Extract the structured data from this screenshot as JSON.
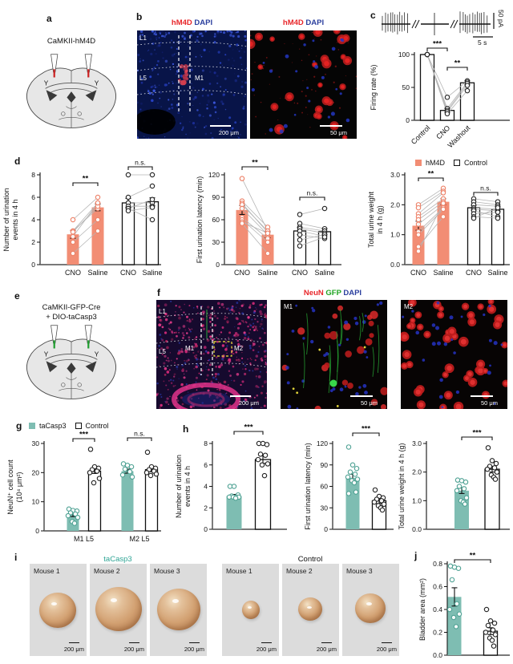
{
  "colors": {
    "salmon": "#F28D74",
    "teal": "#7EBDB2",
    "red_label": "#E8262A",
    "green_label": "#1FA321",
    "blue_label": "#2B3F9E"
  },
  "panel_a": {
    "label": "a",
    "title": "CaMKII-hM4D",
    "site_labels": [
      "Y",
      "Y"
    ]
  },
  "panel_b": {
    "label": "b",
    "left": {
      "title": [
        "hM4D",
        " DAPI"
      ],
      "labels": [
        "L1",
        "L5",
        "M1"
      ],
      "scale": "200 μm"
    },
    "right": {
      "title": [
        "hM4D",
        " DAPI"
      ],
      "scale": "50 μm"
    }
  },
  "panel_c": {
    "label": "c",
    "scale_v": "50 pA",
    "scale_h": "5 s",
    "chart_data": {
      "type": "bar",
      "ylabel_lines": [
        "Firing rate (%)"
      ],
      "ylim": [
        0,
        100
      ],
      "ytick_vals": [
        0,
        50,
        100
      ],
      "ytick_labels": [
        "0",
        "50",
        "100"
      ],
      "bars": [
        {
          "x_label": "Control",
          "value": 100,
          "err": 0,
          "color": "white"
        },
        {
          "x_label": "CNO",
          "value": 15,
          "err": 3,
          "color": "white"
        },
        {
          "x_label": "Washout",
          "value": 57,
          "err": 3,
          "color": "white"
        }
      ],
      "paired": [
        {
          "bars": [
            0,
            1,
            2
          ],
          "lines": [
            [
              100,
              35,
              60
            ],
            [
              100,
              18,
              58
            ],
            [
              100,
              15,
              56
            ],
            [
              100,
              13,
              53
            ],
            [
              100,
              10,
              45
            ]
          ]
        }
      ],
      "sig": [
        {
          "from": 0,
          "to": 1,
          "label": "***"
        },
        {
          "from": 1,
          "to": 2,
          "label": "**"
        }
      ]
    }
  },
  "panel_d": {
    "label": "d",
    "legend": [
      {
        "label": "hM4D"
      },
      {
        "label": "Control"
      }
    ],
    "charts": [
      {
        "type": "bar",
        "ylabel_lines": [
          "Number of urination",
          "events in 4 h"
        ],
        "ylim": [
          0,
          8
        ],
        "ytick_vals": [
          0,
          2,
          4,
          6,
          8
        ],
        "ytick_labels": [
          "0",
          "2",
          "4",
          "6",
          "8"
        ],
        "bars": [
          {
            "x_label": "CNO",
            "value": 2.7,
            "err": 0.35,
            "color": "salmon"
          },
          {
            "x_label": "Saline",
            "value": 5.1,
            "err": 0.3,
            "color": "salmon"
          },
          {
            "x_label": "CNO",
            "value": 5.5,
            "err": 0.4,
            "color": "white"
          },
          {
            "x_label": "Saline",
            "value": 5.6,
            "err": 0.35,
            "color": "white"
          }
        ],
        "paired": [
          {
            "bars": [
              0,
              1
            ],
            "lines": [
              [
                4,
                6
              ],
              [
                3,
                5.5
              ],
              [
                3,
                5
              ],
              [
                2.9,
                5.2
              ],
              [
                2.5,
                5.5
              ],
              [
                2,
                4
              ],
              [
                1,
                3
              ]
            ]
          },
          {
            "bars": [
              2,
              3
            ],
            "lines": [
              [
                8,
                8
              ],
              [
                6,
                7
              ],
              [
                5.5,
                5.5
              ],
              [
                5.2,
                5.2
              ],
              [
                5,
                5.8
              ],
              [
                5,
                4
              ],
              [
                4.8,
                5.1
              ]
            ]
          }
        ],
        "sig": [
          {
            "from": 0,
            "to": 1,
            "label": "**"
          },
          {
            "from": 2,
            "to": 3,
            "label": "n.s."
          }
        ]
      },
      {
        "type": "bar",
        "ylabel_lines": [
          "First urination latency (min)"
        ],
        "ylim": [
          0,
          120
        ],
        "ytick_vals": [
          0,
          30,
          60,
          90,
          120
        ],
        "ytick_labels": [
          "0",
          "30",
          "60",
          "90",
          "120"
        ],
        "bars": [
          {
            "x_label": "CNO",
            "value": 73,
            "err": 6,
            "color": "salmon"
          },
          {
            "x_label": "Saline",
            "value": 40,
            "err": 4,
            "color": "salmon"
          },
          {
            "x_label": "CNO",
            "value": 45,
            "err": 5,
            "color": "white"
          },
          {
            "x_label": "Saline",
            "value": 44,
            "err": 4,
            "color": "white"
          }
        ],
        "paired": [
          {
            "bars": [
              0,
              1
            ],
            "lines": [
              [
                115,
                45
              ],
              [
                85,
                50
              ],
              [
                82,
                43
              ],
              [
                80,
                45
              ],
              [
                75,
                40
              ],
              [
                63,
                35
              ],
              [
                60,
                30
              ],
              [
                57,
                42
              ],
              [
                55,
                15
              ]
            ]
          },
          {
            "bars": [
              2,
              3
            ],
            "lines": [
              [
                67,
                75
              ],
              [
                55,
                48
              ],
              [
                50,
                45
              ],
              [
                48,
                42
              ],
              [
                45,
                38
              ],
              [
                40,
                35
              ],
              [
                33,
                40
              ],
              [
                25,
                37
              ]
            ]
          }
        ],
        "sig": [
          {
            "from": 0,
            "to": 1,
            "label": "**"
          },
          {
            "from": 2,
            "to": 3,
            "label": "n.s."
          }
        ]
      },
      {
        "type": "bar",
        "ylabel_lines": [
          "Total urine weight",
          "in 4 h (g)"
        ],
        "ylim": [
          0,
          3
        ],
        "ytick_vals": [
          0,
          1,
          2,
          3
        ],
        "ytick_labels": [
          "0.0",
          "1.0",
          "2.0",
          "3.0"
        ],
        "bars": [
          {
            "x_label": "CNO",
            "value": 1.3,
            "err": 0.15,
            "color": "salmon"
          },
          {
            "x_label": "Saline",
            "value": 2.1,
            "err": 0.1,
            "color": "salmon"
          },
          {
            "x_label": "CNO",
            "value": 1.9,
            "err": 0.08,
            "color": "white"
          },
          {
            "x_label": "Saline",
            "value": 1.85,
            "err": 0.08,
            "color": "white"
          }
        ],
        "paired": [
          {
            "bars": [
              0,
              1
            ],
            "lines": [
              [
                2,
                2.55
              ],
              [
                1.9,
                2.45
              ],
              [
                1.7,
                2.4
              ],
              [
                1.6,
                2.2
              ],
              [
                1.5,
                2.1
              ],
              [
                1.35,
                2
              ],
              [
                1.1,
                1.9
              ],
              [
                1,
                1.85
              ],
              [
                0.6,
                1.6
              ],
              [
                0.45,
                2.05
              ]
            ]
          },
          {
            "bars": [
              2,
              3
            ],
            "lines": [
              [
                2.2,
                2.1
              ],
              [
                2.1,
                2
              ],
              [
                2,
                1.95
              ],
              [
                1.9,
                1.85
              ],
              [
                1.85,
                1.8
              ],
              [
                1.8,
                1.6
              ],
              [
                1.7,
                1.75
              ],
              [
                1.6,
                1.55
              ],
              [
                1.55,
                1.9
              ]
            ]
          }
        ],
        "sig": [
          {
            "from": 0,
            "to": 1,
            "label": "**"
          },
          {
            "from": 2,
            "to": 3,
            "label": "n.s."
          }
        ]
      }
    ]
  },
  "panel_e": {
    "label": "e",
    "title_lines": [
      "CaMKII-GFP-Cre",
      "+ DIO-taCasp3"
    ],
    "site_labels": [
      "Y",
      "Y"
    ]
  },
  "panel_f": {
    "label": "f",
    "title": [
      "NeuN",
      " GFP",
      " DAPI"
    ],
    "left": {
      "labels": [
        "L1",
        "L5",
        "M1",
        "M2"
      ],
      "scale": "200 μm"
    },
    "mid": {
      "label": "M1",
      "scale": "50 μm"
    },
    "right": {
      "label": "M2",
      "scale": "50 μm"
    }
  },
  "panel_g": {
    "label": "g",
    "legend": [
      {
        "label": "taCasp3"
      },
      {
        "label": "Control"
      }
    ],
    "chart_data": {
      "type": "bar",
      "ylabel_lines": [
        "NeuN⁺ cell count",
        "(10⁴ μm²)"
      ],
      "ylim": [
        0,
        30
      ],
      "ytick_vals": [
        0,
        10,
        20,
        30
      ],
      "ytick_labels": [
        "0",
        "10",
        "20",
        "30"
      ],
      "bars": [
        {
          "value": 5.5,
          "err": 0.6,
          "color": "teal",
          "points": [
            7.5,
            7,
            6.8,
            6.2,
            5.8,
            5.2,
            4.6,
            3.2,
            2.6
          ]
        },
        {
          "value": 20.5,
          "err": 0.8,
          "color": "white",
          "points": [
            28,
            22,
            21.5,
            21,
            20.5,
            20,
            18,
            16.5
          ]
        },
        {
          "value": 20.5,
          "err": 0.7,
          "color": "teal",
          "points": [
            23,
            22.5,
            22,
            21.2,
            20.3,
            19.2,
            18.5
          ]
        },
        {
          "value": 21,
          "err": 0.7,
          "color": "white",
          "points": [
            27,
            22,
            21.5,
            21,
            20.5,
            20,
            19.5,
            19
          ]
        }
      ],
      "xgroup_labels": [
        "M1 L5",
        "M2 L5"
      ],
      "sig": [
        {
          "from": 0,
          "to": 1,
          "label": "***"
        },
        {
          "from": 2,
          "to": 3,
          "label": "n.s."
        }
      ]
    }
  },
  "panel_h": {
    "label": "h",
    "charts": [
      {
        "type": "bar",
        "ylabel_lines": [
          "Number of urination",
          "events in 4 h"
        ],
        "ylim": [
          0,
          8
        ],
        "ytick_vals": [
          0,
          2,
          4,
          6,
          8
        ],
        "ytick_labels": [
          "0",
          "2",
          "4",
          "6",
          "8"
        ],
        "bars": [
          {
            "value": 3.1,
            "err": 0.15,
            "color": "teal",
            "points": [
              4,
              4,
              3.2,
              3.1,
              3,
              3,
              3,
              3,
              2.9
            ]
          },
          {
            "value": 6.5,
            "err": 0.35,
            "color": "white",
            "points": [
              8,
              8,
              7.9,
              7,
              6.9,
              6.5,
              6.1,
              6,
              5
            ]
          }
        ],
        "sig": [
          {
            "from": 0,
            "to": 1,
            "label": "***"
          }
        ]
      },
      {
        "type": "bar",
        "ylabel_lines": [
          "First urination latency (min)"
        ],
        "ylim": [
          0,
          120
        ],
        "ytick_vals": [
          0,
          30,
          60,
          90,
          120
        ],
        "ytick_labels": [
          "0",
          "30",
          "60",
          "90",
          "120"
        ],
        "bars": [
          {
            "value": 72,
            "err": 5,
            "color": "teal",
            "points": [
              115,
              90,
              85,
              80,
              77,
              73,
              70,
              68,
              65,
              52,
              50
            ]
          },
          {
            "value": 40,
            "err": 4,
            "color": "white",
            "points": [
              55,
              46,
              44,
              42,
              40,
              38,
              35,
              33,
              30,
              27
            ]
          }
        ],
        "sig": [
          {
            "from": 0,
            "to": 1,
            "label": "***"
          }
        ]
      },
      {
        "type": "bar",
        "ylabel_lines": [
          "Total urine weight in 4 h (g)"
        ],
        "ylim": [
          0,
          3
        ],
        "ytick_vals": [
          0,
          1,
          2,
          3
        ],
        "ytick_labels": [
          "0.0",
          "1.0",
          "2.0",
          "3.0"
        ],
        "bars": [
          {
            "value": 1.35,
            "err": 0.1,
            "color": "teal",
            "points": [
              1.72,
              1.7,
              1.65,
              1.5,
              1.42,
              1.35,
              1.1,
              1,
              0.95,
              0.88
            ]
          },
          {
            "value": 2.1,
            "err": 0.1,
            "color": "white",
            "points": [
              2.85,
              2.4,
              2.3,
              2.2,
              2.15,
              2.1,
              2,
              1.9,
              1.82,
              1.75
            ]
          }
        ],
        "sig": [
          {
            "from": 0,
            "to": 1,
            "label": "***"
          }
        ]
      }
    ]
  },
  "panel_i": {
    "label": "i",
    "scale": "200 μm",
    "groups": [
      {
        "title": "taCasp3",
        "mice": [
          "Mouse 1",
          "Mouse 2",
          "Mouse 3"
        ]
      },
      {
        "title": "Control",
        "mice": [
          "Mouse 1",
          "Mouse 2",
          "Mouse 3"
        ]
      }
    ]
  },
  "panel_j": {
    "label": "j",
    "chart_data": {
      "type": "bar",
      "ylabel_lines": [
        "Bladder area (mm²)"
      ],
      "ylim": [
        0,
        0.8
      ],
      "ytick_vals": [
        0,
        0.2,
        0.4,
        0.6,
        0.8
      ],
      "ytick_labels": [
        "0.0",
        "0.2",
        "0.4",
        "0.6",
        "0.8"
      ],
      "bars": [
        {
          "value": 0.51,
          "err": 0.08,
          "color": "teal",
          "points": [
            0.78,
            0.77,
            0.76,
            0.66,
            0.45,
            0.4,
            0.36,
            0.33,
            0.25
          ]
        },
        {
          "value": 0.21,
          "err": 0.03,
          "color": "white",
          "points": [
            0.4,
            0.3,
            0.28,
            0.26,
            0.22,
            0.2,
            0.18,
            0.15,
            0.13,
            0.08
          ]
        }
      ],
      "sig": [
        {
          "from": 0,
          "to": 1,
          "label": "**"
        }
      ]
    }
  }
}
